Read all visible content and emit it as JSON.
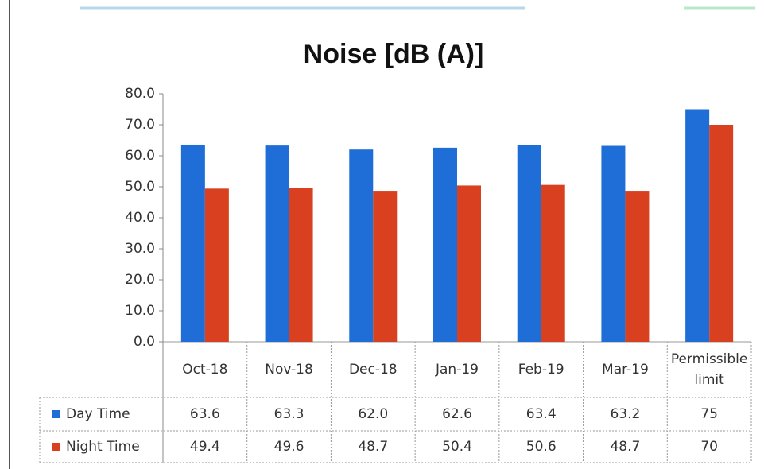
{
  "chart_data": {
    "type": "bar",
    "title": "Noise [dB (A)]",
    "categories": [
      "Oct-18",
      "Nov-18",
      "Dec-18",
      "Jan-19",
      "Feb-19",
      "Mar-19",
      "Permissible limit"
    ],
    "series": [
      {
        "name": "Day Time",
        "color": "#1f6ed8",
        "values": [
          63.6,
          63.3,
          62.0,
          62.6,
          63.4,
          63.2,
          75
        ],
        "value_labels": [
          "63.6",
          "63.3",
          "62.0",
          "62.6",
          "63.4",
          "63.2",
          "75"
        ]
      },
      {
        "name": "Night Time",
        "color": "#d8401f",
        "values": [
          49.4,
          49.6,
          48.7,
          50.4,
          50.6,
          48.7,
          70
        ],
        "value_labels": [
          "49.4",
          "49.6",
          "48.7",
          "50.4",
          "50.6",
          "48.7",
          "70"
        ]
      }
    ],
    "ylim": [
      0,
      80
    ],
    "yticks": [
      {
        "value": 0,
        "label": "0.0"
      },
      {
        "value": 10,
        "label": "10.0"
      },
      {
        "value": 20,
        "label": "20.0"
      },
      {
        "value": 30,
        "label": "30.0"
      },
      {
        "value": 40,
        "label": "40.0"
      },
      {
        "value": 50,
        "label": "50.0"
      },
      {
        "value": 60,
        "label": "60.0"
      },
      {
        "value": 70,
        "label": "70.0"
      },
      {
        "value": 80,
        "label": "80.0"
      }
    ],
    "grid": false
  }
}
